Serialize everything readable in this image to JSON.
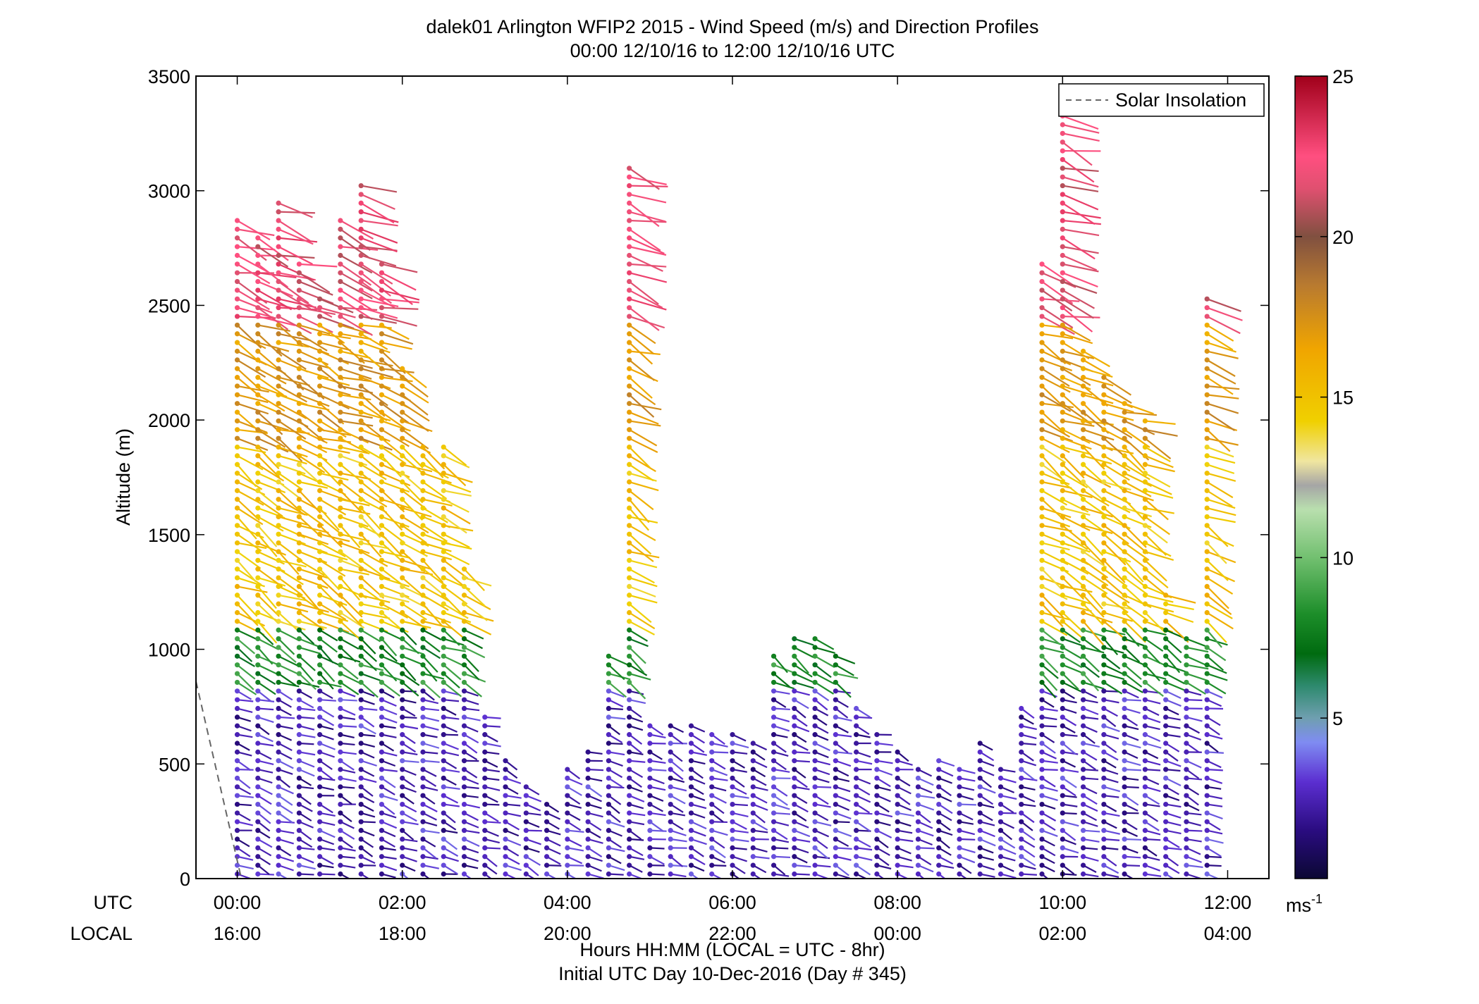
{
  "figure": {
    "title_line1": "dalek01 Arlington WFIP2 2015 - Wind Speed (m/s) and Direction Profiles",
    "title_line2": "00:00 12/10/16 to 12:00 12/10/16  UTC",
    "xlabel_line1": "Hours HH:MM  (LOCAL = UTC - 8hr)",
    "xlabel_line2": "Initial UTC Day 10-Dec-2016 (Day # 345)",
    "ylabel": "Altitude (m)",
    "utc_row_label": "UTC",
    "local_row_label": "LOCAL",
    "legend_label": "Solar Insolation",
    "colorbar_unit": "ms",
    "colorbar_unit_exp": "-1"
  },
  "chart_data": {
    "type": "scatter",
    "subtype": "wind barbs (stick plot) colored by wind speed",
    "title": "dalek01 Arlington WFIP2 2015 - Wind Speed (m/s) and Direction Profiles",
    "xlabel": "Hours HH:MM  (LOCAL = UTC - 8hr)",
    "ylabel": "Altitude (m)",
    "xlim_hours_utc": [
      -0.5,
      12.5
    ],
    "ylim": [
      0,
      3500
    ],
    "yticks": [
      0,
      500,
      1000,
      1500,
      2000,
      2500,
      3000,
      3500
    ],
    "xticks_hours": [
      0,
      2,
      4,
      6,
      8,
      10,
      12
    ],
    "xtick_labels_utc": [
      "00:00",
      "02:00",
      "04:00",
      "06:00",
      "08:00",
      "10:00",
      "12:00"
    ],
    "xtick_labels_local": [
      "16:00",
      "18:00",
      "20:00",
      "22:00",
      "00:00",
      "02:00",
      "04:00"
    ],
    "colorbar": {
      "min": 0,
      "max": 25,
      "ticks": [
        5,
        10,
        15,
        20,
        25
      ],
      "unit": "ms-1"
    },
    "legend": {
      "entries": [
        "Solar Insolation"
      ],
      "placement": "top-right"
    },
    "solar_insolation": {
      "style": "dashed",
      "color": "#666666",
      "x": [
        -0.5,
        0.05
      ],
      "y": [
        860,
        0
      ]
    },
    "profile_times_hours": [
      0,
      0.25,
      0.5,
      0.75,
      1.0,
      1.25,
      1.5,
      1.75,
      2.0,
      2.25,
      2.5,
      2.75,
      3.0,
      3.25,
      3.5,
      3.75,
      4.0,
      4.25,
      4.5,
      4.75,
      5.0,
      5.25,
      5.5,
      5.75,
      6.0,
      6.25,
      6.5,
      6.75,
      7.0,
      7.25,
      7.5,
      7.75,
      8.0,
      8.25,
      8.5,
      8.75,
      9.0,
      9.25,
      9.5,
      9.75,
      10.0,
      10.25,
      10.5,
      10.75,
      11.0,
      11.25,
      11.5,
      11.75
    ],
    "profile_tops_m": [
      2900,
      2820,
      2960,
      2680,
      2540,
      2900,
      3030,
      2680,
      2250,
      1900,
      1900,
      1350,
      720,
      530,
      400,
      350,
      510,
      560,
      980,
      3100,
      700,
      700,
      680,
      640,
      640,
      600,
      1000,
      1050,
      1080,
      990,
      750,
      640,
      560,
      500,
      540,
      480,
      600,
      500,
      750,
      2700,
      3350,
      2300,
      2200,
      2100,
      2000,
      1250,
      1050,
      2550
    ],
    "speed_layers": [
      {
        "alt_range_m": [
          0,
          850
        ],
        "speed_ms": 2.5,
        "direction_deg": 250
      },
      {
        "alt_range_m": [
          850,
          1100
        ],
        "speed_ms": 8,
        "direction_deg": 240
      },
      {
        "alt_range_m": [
          1100,
          1900
        ],
        "speed_ms": 15,
        "direction_deg": 240
      },
      {
        "alt_range_m": [
          1900,
          2450
        ],
        "speed_ms": 17,
        "direction_deg": 245
      },
      {
        "alt_range_m": [
          2450,
          3000
        ],
        "speed_ms": 22,
        "direction_deg": 250
      }
    ]
  },
  "colors": {
    "axis": "#000000",
    "solar_line": "#666666"
  }
}
